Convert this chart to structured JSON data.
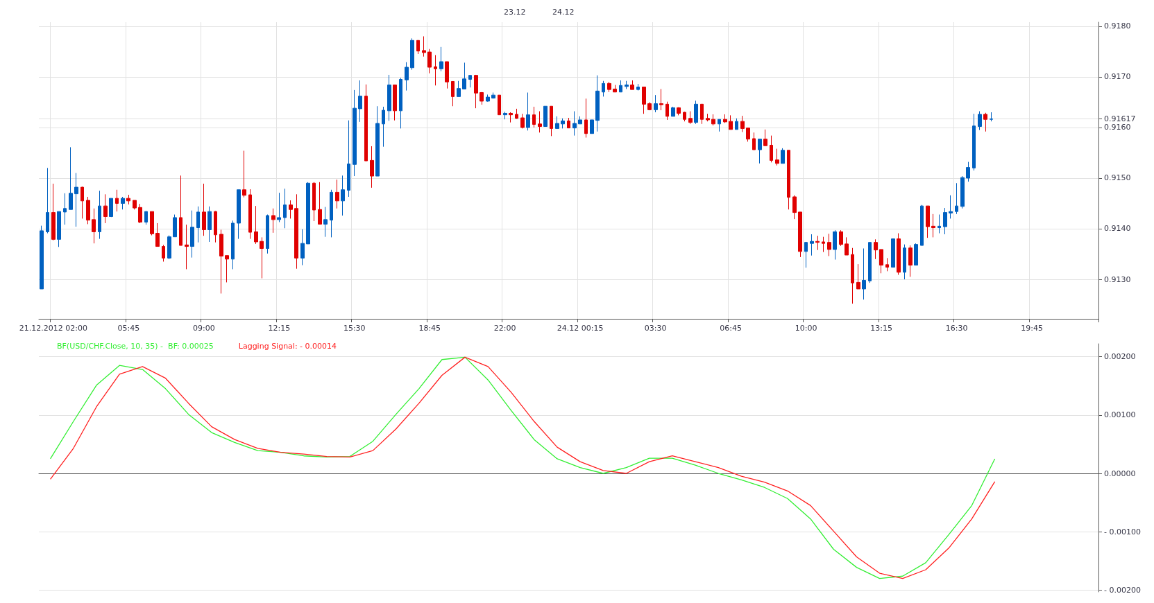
{
  "chart_data": [
    {
      "type": "candlestick",
      "grid": true,
      "legend": false,
      "categories": [
        null,
        null,
        "21.12.2012 02:00",
        null,
        null,
        null,
        null,
        null,
        null,
        null,
        null,
        null,
        null,
        null,
        null,
        "05:45",
        null,
        null,
        null,
        null,
        null,
        null,
        null,
        null,
        null,
        null,
        null,
        null,
        "09:00",
        null,
        null,
        null,
        null,
        null,
        null,
        null,
        null,
        null,
        null,
        null,
        null,
        "12:15",
        null,
        null,
        null,
        null,
        null,
        null,
        null,
        null,
        null,
        null,
        null,
        null,
        "15:30",
        null,
        null,
        null,
        null,
        null,
        null,
        null,
        null,
        null,
        null,
        null,
        null,
        "18:45",
        null,
        null,
        null,
        null,
        null,
        null,
        null,
        null,
        null,
        null,
        null,
        null,
        "22:00",
        null,
        null,
        null,
        null,
        null,
        null,
        null,
        null,
        null,
        null,
        null,
        null,
        "24.12 00:15",
        null,
        null,
        null,
        null,
        null,
        null,
        null,
        null,
        null,
        null,
        null,
        null,
        "03:30",
        null,
        null,
        null,
        null,
        null,
        null,
        null,
        null,
        null,
        null,
        null,
        null,
        "06:45",
        null,
        null,
        null,
        null,
        null,
        null,
        null,
        null,
        null,
        null,
        null,
        null,
        "10:00",
        null,
        null,
        null,
        null,
        null,
        null,
        null,
        null,
        null,
        null,
        null,
        null,
        "13:15",
        null,
        null,
        null,
        null,
        null,
        null,
        null,
        null,
        null,
        null,
        null,
        null,
        "16:30",
        null,
        null,
        null,
        null,
        null,
        null,
        null,
        null,
        null,
        null,
        null,
        null,
        "19:45",
        null,
        null,
        null,
        null,
        null,
        null,
        null,
        null,
        null,
        null,
        null
      ],
      "ylim": [
        0.91222,
        0.91808
      ],
      "yticks": [
        {
          "value": 0.913,
          "label": "0.9130"
        },
        {
          "value": 0.914,
          "label": "0.9140"
        },
        {
          "value": 0.915,
          "label": "0.9150"
        },
        {
          "value": 0.916,
          "label": "0.9160"
        },
        {
          "value": 0.91617,
          "label": "0.91617"
        },
        {
          "value": 0.917,
          "label": "0.9170"
        },
        {
          "value": 0.918,
          "label": "0.9180"
        }
      ],
      "annotations": [
        "23.12",
        "24.12"
      ],
      "ohlc": [
        [
          0.91281,
          0.91406,
          0.91281,
          0.91396
        ],
        [
          0.91394,
          0.9152,
          0.91391,
          0.91432
        ],
        [
          0.91432,
          0.91489,
          0.91377,
          0.91379
        ],
        [
          0.91379,
          0.91434,
          0.91364,
          0.91434
        ],
        [
          0.91433,
          0.9147,
          0.91408,
          0.9144
        ],
        [
          0.91438,
          0.91561,
          0.91438,
          0.9147
        ],
        [
          0.91469,
          0.9151,
          0.91404,
          0.91482
        ],
        [
          0.91482,
          0.91483,
          0.9142,
          0.91455
        ],
        [
          0.91456,
          0.91463,
          0.91409,
          0.91417
        ],
        [
          0.91418,
          0.9144,
          0.91371,
          0.91394
        ],
        [
          0.91394,
          0.91475,
          0.9138,
          0.91445
        ],
        [
          0.91445,
          0.91468,
          0.91411,
          0.91424
        ],
        [
          0.91424,
          0.9146,
          0.91423,
          0.9146
        ],
        [
          0.9146,
          0.91477,
          0.91434,
          0.9145
        ],
        [
          0.9145,
          0.91463,
          0.91438,
          0.9146
        ],
        [
          0.9146,
          0.91467,
          0.91448,
          0.91455
        ],
        [
          0.91456,
          0.91456,
          0.91438,
          0.91441
        ],
        [
          0.91442,
          0.91449,
          0.91411,
          0.91413
        ],
        [
          0.91413,
          0.91435,
          0.91408,
          0.91434
        ],
        [
          0.91434,
          0.91434,
          0.91387,
          0.9139
        ],
        [
          0.91391,
          0.91411,
          0.91365,
          0.91365
        ],
        [
          0.91365,
          0.91368,
          0.91335,
          0.91342
        ],
        [
          0.91342,
          0.91387,
          0.9134,
          0.91384
        ],
        [
          0.91384,
          0.91428,
          0.91384,
          0.91422
        ],
        [
          0.91422,
          0.91505,
          0.91367,
          0.91367
        ],
        [
          0.91368,
          0.91408,
          0.9132,
          0.91365
        ],
        [
          0.91365,
          0.91436,
          0.91343,
          0.91403
        ],
        [
          0.91402,
          0.91444,
          0.91373,
          0.91433
        ],
        [
          0.91433,
          0.91489,
          0.91386,
          0.91398
        ],
        [
          0.91398,
          0.91444,
          0.91374,
          0.91434
        ],
        [
          0.91434,
          0.91435,
          0.91373,
          0.91388
        ],
        [
          0.91389,
          0.91398,
          0.91272,
          0.91346
        ],
        [
          0.91347,
          0.91347,
          0.91294,
          0.9134
        ],
        [
          0.9134,
          0.91416,
          0.9132,
          0.91411
        ],
        [
          0.91411,
          0.91477,
          0.9138,
          0.91477
        ],
        [
          0.91477,
          0.91554,
          0.91462,
          0.91466
        ],
        [
          0.91467,
          0.91478,
          0.9138,
          0.91393
        ],
        [
          0.91394,
          0.91445,
          0.9137,
          0.91374
        ],
        [
          0.91375,
          0.91383,
          0.91302,
          0.91361
        ],
        [
          0.91361,
          0.91428,
          0.91351,
          0.91426
        ],
        [
          0.91426,
          0.9144,
          0.91392,
          0.91418
        ],
        [
          0.91418,
          0.91471,
          0.91413,
          0.91422
        ],
        [
          0.91422,
          0.91479,
          0.91401,
          0.91447
        ],
        [
          0.91447,
          0.91456,
          0.9142,
          0.91438
        ],
        [
          0.9144,
          0.91468,
          0.91321,
          0.91342
        ],
        [
          0.91342,
          0.91399,
          0.91328,
          0.91371
        ],
        [
          0.9137,
          0.91492,
          0.9137,
          0.9149
        ],
        [
          0.9149,
          0.91492,
          0.91415,
          0.91437
        ],
        [
          0.91438,
          0.91492,
          0.91409,
          0.91409
        ],
        [
          0.91409,
          0.91443,
          0.91384,
          0.91418
        ],
        [
          0.91417,
          0.91477,
          0.91383,
          0.91472
        ],
        [
          0.91472,
          0.91497,
          0.9144,
          0.91455
        ],
        [
          0.91455,
          0.91505,
          0.91426,
          0.91477
        ],
        [
          0.91476,
          0.91614,
          0.91463,
          0.91528
        ],
        [
          0.91527,
          0.91674,
          0.91504,
          0.91638
        ],
        [
          0.91637,
          0.91693,
          0.91611,
          0.91662
        ],
        [
          0.91662,
          0.91685,
          0.91534,
          0.91534
        ],
        [
          0.91535,
          0.91563,
          0.91481,
          0.91504
        ],
        [
          0.91504,
          0.91642,
          0.91504,
          0.91608
        ],
        [
          0.91607,
          0.91641,
          0.91562,
          0.91634
        ],
        [
          0.91633,
          0.91704,
          0.91613,
          0.91684
        ],
        [
          0.91684,
          0.91684,
          0.91614,
          0.91633
        ],
        [
          0.91633,
          0.91698,
          0.91598,
          0.91695
        ],
        [
          0.91694,
          0.91729,
          0.91673,
          0.91719
        ],
        [
          0.91718,
          0.91776,
          0.91714,
          0.91772
        ],
        [
          0.91772,
          0.91772,
          0.91745,
          0.91751
        ],
        [
          0.91752,
          0.9178,
          0.9174,
          0.91748
        ],
        [
          0.91749,
          0.91755,
          0.91707,
          0.91719
        ],
        [
          0.9172,
          0.91743,
          0.91683,
          0.91716
        ],
        [
          0.91716,
          0.91759,
          0.91711,
          0.9173
        ],
        [
          0.9173,
          0.9173,
          0.91677,
          0.9169
        ],
        [
          0.91691,
          0.91691,
          0.91642,
          0.91661
        ],
        [
          0.91661,
          0.91692,
          0.91661,
          0.91677
        ],
        [
          0.91676,
          0.91728,
          0.91676,
          0.91696
        ],
        [
          0.91695,
          0.91703,
          0.91679,
          0.91703
        ],
        [
          0.91703,
          0.91704,
          0.91638,
          0.91668
        ],
        [
          0.91669,
          0.9167,
          0.91645,
          0.91652
        ],
        [
          0.91652,
          0.91665,
          0.91651,
          0.9166
        ],
        [
          0.91658,
          0.91669,
          0.91657,
          0.91664
        ],
        [
          0.91664,
          0.91664,
          0.91625,
          0.91625
        ],
        [
          0.91625,
          0.91631,
          0.91616,
          0.91628
        ],
        [
          0.91628,
          0.9163,
          0.9161,
          0.91625
        ],
        [
          0.91626,
          0.91637,
          0.91617,
          0.91618
        ],
        [
          0.91619,
          0.91627,
          0.91598,
          0.916
        ],
        [
          0.916,
          0.91669,
          0.91594,
          0.91625
        ],
        [
          0.91625,
          0.91641,
          0.916,
          0.91606
        ],
        [
          0.91607,
          0.91632,
          0.9159,
          0.91602
        ],
        [
          0.91602,
          0.91642,
          0.91602,
          0.91642
        ],
        [
          0.91642,
          0.91642,
          0.91583,
          0.91598
        ],
        [
          0.91598,
          0.91622,
          0.91598,
          0.91608
        ],
        [
          0.91607,
          0.91618,
          0.91598,
          0.91613
        ],
        [
          0.91613,
          0.91619,
          0.91599,
          0.91599
        ],
        [
          0.91599,
          0.91632,
          0.91584,
          0.91608
        ],
        [
          0.91607,
          0.91622,
          0.91607,
          0.91615
        ],
        [
          0.91615,
          0.91657,
          0.9158,
          0.91588
        ],
        [
          0.91588,
          0.91615,
          0.91588,
          0.91615
        ],
        [
          0.91614,
          0.91703,
          0.91592,
          0.91672
        ],
        [
          0.9167,
          0.91692,
          0.91661,
          0.91687
        ],
        [
          0.91687,
          0.9169,
          0.9167,
          0.91675
        ],
        [
          0.91676,
          0.91684,
          0.9167,
          0.9167
        ],
        [
          0.9167,
          0.91693,
          0.9167,
          0.91683
        ],
        [
          0.91681,
          0.91692,
          0.91676,
          0.91684
        ],
        [
          0.91684,
          0.91693,
          0.91675,
          0.91675
        ],
        [
          0.91675,
          0.91686,
          0.91673,
          0.9168
        ],
        [
          0.9168,
          0.9168,
          0.91627,
          0.91646
        ],
        [
          0.91647,
          0.9165,
          0.91634,
          0.91635
        ],
        [
          0.91635,
          0.91664,
          0.9163,
          0.91647
        ],
        [
          0.91647,
          0.91676,
          0.91634,
          0.91645
        ],
        [
          0.91646,
          0.91651,
          0.91615,
          0.91622
        ],
        [
          0.91622,
          0.91641,
          0.91622,
          0.91639
        ],
        [
          0.91639,
          0.9164,
          0.91624,
          0.91628
        ],
        [
          0.9163,
          0.91631,
          0.91612,
          0.91616
        ],
        [
          0.91618,
          0.91632,
          0.91607,
          0.9161
        ],
        [
          0.9161,
          0.91653,
          0.91607,
          0.91646
        ],
        [
          0.91646,
          0.91646,
          0.91607,
          0.91616
        ],
        [
          0.91618,
          0.91627,
          0.91612,
          0.91615
        ],
        [
          0.91616,
          0.91626,
          0.91604,
          0.91607
        ],
        [
          0.91607,
          0.91616,
          0.91592,
          0.91616
        ],
        [
          0.91616,
          0.91626,
          0.91609,
          0.91611
        ],
        [
          0.91612,
          0.91624,
          0.91596,
          0.91596
        ],
        [
          0.91596,
          0.91618,
          0.91596,
          0.91612
        ],
        [
          0.91612,
          0.91623,
          0.91591,
          0.91598
        ],
        [
          0.91599,
          0.91599,
          0.91572,
          0.91577
        ],
        [
          0.91578,
          0.9159,
          0.91556,
          0.91556
        ],
        [
          0.91556,
          0.91577,
          0.91529,
          0.91577
        ],
        [
          0.91577,
          0.91596,
          0.91564,
          0.91564
        ],
        [
          0.91565,
          0.91584,
          0.91531,
          0.91535
        ],
        [
          0.91536,
          0.91558,
          0.91525,
          0.91529
        ],
        [
          0.91529,
          0.91559,
          0.91529,
          0.91555
        ],
        [
          0.91555,
          0.91555,
          0.91438,
          0.91462
        ],
        [
          0.91463,
          0.91466,
          0.91419,
          0.91432
        ],
        [
          0.91433,
          0.91433,
          0.91344,
          0.91355
        ],
        [
          0.91355,
          0.91374,
          0.91323,
          0.91373
        ],
        [
          0.91371,
          0.91389,
          0.91347,
          0.91375
        ],
        [
          0.91375,
          0.91386,
          0.91358,
          0.91373
        ],
        [
          0.91374,
          0.91384,
          0.91354,
          0.91371
        ],
        [
          0.91373,
          0.9139,
          0.91346,
          0.91359
        ],
        [
          0.91359,
          0.91397,
          0.91339,
          0.91394
        ],
        [
          0.91394,
          0.91397,
          0.91366,
          0.91369
        ],
        [
          0.9137,
          0.91383,
          0.91348,
          0.91348
        ],
        [
          0.91349,
          0.91362,
          0.91252,
          0.91293
        ],
        [
          0.91294,
          0.9133,
          0.91281,
          0.91281
        ],
        [
          0.91281,
          0.91361,
          0.9126,
          0.91298
        ],
        [
          0.91297,
          0.91373,
          0.91293,
          0.91373
        ],
        [
          0.91373,
          0.91379,
          0.9134,
          0.91358
        ],
        [
          0.91359,
          0.91359,
          0.91312,
          0.91328
        ],
        [
          0.91329,
          0.91342,
          0.91316,
          0.91324
        ],
        [
          0.91324,
          0.9138,
          0.91324,
          0.9138
        ],
        [
          0.9138,
          0.91391,
          0.91309,
          0.91314
        ],
        [
          0.91314,
          0.91369,
          0.913,
          0.91362
        ],
        [
          0.91362,
          0.91367,
          0.91305,
          0.91328
        ],
        [
          0.91328,
          0.91371,
          0.91328,
          0.91369
        ],
        [
          0.91367,
          0.91447,
          0.91367,
          0.91445
        ],
        [
          0.91445,
          0.91445,
          0.91382,
          0.91404
        ],
        [
          0.91405,
          0.91429,
          0.91383,
          0.91402
        ],
        [
          0.91402,
          0.91428,
          0.91391,
          0.91405
        ],
        [
          0.91404,
          0.91441,
          0.91389,
          0.91432
        ],
        [
          0.91431,
          0.91466,
          0.9142,
          0.91434
        ],
        [
          0.91434,
          0.9149,
          0.91429,
          0.91445
        ],
        [
          0.91444,
          0.91504,
          0.9144,
          0.91501
        ],
        [
          0.915,
          0.91532,
          0.91493,
          0.91521
        ],
        [
          0.9152,
          0.91627,
          0.91515,
          0.91603
        ],
        [
          0.91602,
          0.91632,
          0.91595,
          0.91626
        ],
        [
          0.91626,
          0.91629,
          0.91592,
          0.91616
        ],
        [
          0.91616,
          0.9163,
          0.91612,
          0.91617
        ],
        null,
        null,
        null,
        null,
        null,
        null,
        null,
        null,
        null,
        null,
        null,
        null,
        null,
        null,
        null,
        null,
        null,
        null
      ],
      "colors": [
        "#0060c0",
        "#0060c0",
        "#e00000",
        "#0060c0",
        "#0060c0",
        "#0060c0",
        "#0060c0",
        "#e00000",
        "#e00000",
        "#e00000",
        "#0060c0",
        "#e00000",
        "#0060c0",
        "#e00000",
        "#0060c0",
        "#e00000",
        "#e00000",
        "#e00000",
        "#0060c0",
        "#e00000",
        "#e00000",
        "#e00000",
        "#0060c0",
        "#0060c0",
        "#e00000",
        "#e00000",
        "#0060c0",
        "#0060c0",
        "#e00000",
        "#0060c0",
        "#e00000",
        "#e00000",
        "#e00000",
        "#0060c0",
        "#0060c0",
        "#e00000",
        "#e00000",
        "#e00000",
        "#e00000",
        "#0060c0",
        "#e00000",
        "#0060c0",
        "#0060c0",
        "#e00000",
        "#e00000",
        "#0060c0",
        "#0060c0",
        "#e00000",
        "#e00000",
        "#0060c0",
        "#0060c0",
        "#e00000",
        "#0060c0",
        "#0060c0",
        "#0060c0",
        "#0060c0",
        "#e00000",
        "#e00000",
        "#0060c0",
        "#0060c0",
        "#0060c0",
        "#e00000",
        "#0060c0",
        "#0060c0",
        "#0060c0",
        "#e00000",
        "#e00000",
        "#e00000",
        "#e00000",
        "#0060c0",
        "#e00000",
        "#e00000",
        "#0060c0",
        "#0060c0",
        "#0060c0",
        "#e00000",
        "#e00000",
        "#0060c0",
        "#0060c0",
        "#e00000",
        "#0060c0",
        "#e00000",
        "#e00000",
        "#e00000",
        "#0060c0",
        "#e00000",
        "#e00000",
        "#0060c0",
        "#e00000",
        "#0060c0",
        "#0060c0",
        "#e00000",
        "#0060c0",
        "#0060c0",
        "#e00000",
        "#0060c0",
        "#0060c0",
        "#0060c0",
        "#e00000",
        "#e00000",
        "#0060c0",
        "#0060c0",
        "#e00000",
        "#0060c0",
        "#e00000",
        "#e00000",
        "#0060c0",
        "#e00000",
        "#e00000",
        "#0060c0",
        "#e00000",
        "#e00000",
        "#e00000",
        "#0060c0",
        "#e00000",
        "#e00000",
        "#e00000",
        "#0060c0",
        "#e00000",
        "#e00000",
        "#0060c0",
        "#e00000",
        "#e00000",
        "#e00000",
        "#0060c0",
        "#e00000",
        "#e00000",
        "#e00000",
        "#0060c0",
        "#e00000",
        "#e00000",
        "#e00000",
        "#0060c0",
        "#0060c0",
        "#e00000",
        "#e00000",
        "#e00000",
        "#0060c0",
        "#e00000",
        "#e00000",
        "#e00000",
        "#e00000",
        "#0060c0",
        "#0060c0",
        "#e00000",
        "#e00000",
        "#e00000",
        "#0060c0",
        "#e00000",
        "#0060c0",
        "#e00000",
        "#0060c0",
        "#0060c0",
        "#e00000",
        "#e00000",
        "#0060c0",
        "#0060c0",
        "#0060c0",
        "#0060c0",
        "#0060c0",
        "#0060c0",
        "#0060c0",
        "#0060c0",
        "#e00000",
        "#0060c0",
        null,
        null,
        null,
        null,
        null,
        null,
        null,
        null,
        null,
        null,
        null,
        null,
        null,
        null,
        null,
        null,
        null,
        null
      ]
    },
    {
      "type": "line",
      "grid": true,
      "legend": "top left",
      "tick_labels": "y",
      "marker": "none",
      "line_style": "solid",
      "categories": [
        null,
        null,
        null,
        null,
        null,
        null,
        null,
        null,
        null,
        null,
        null,
        null,
        null,
        null,
        null,
        null,
        null,
        null,
        null,
        null,
        null,
        null,
        null,
        null,
        null,
        null,
        null,
        null,
        null,
        null,
        null,
        null,
        null,
        null,
        null,
        null,
        null,
        null,
        null,
        null,
        null,
        null,
        null,
        null,
        null,
        null
      ],
      "ylim": [
        -0.00203,
        0.00222
      ],
      "yticks": [
        {
          "value": -0.002,
          "label": "- 0.00200"
        },
        {
          "value": -0.001,
          "label": "- 0.00100"
        },
        {
          "value": 0,
          "label": "0.00000"
        },
        {
          "value": 0.001,
          "label": "0.00100"
        },
        {
          "value": 0.002,
          "label": "0.00200"
        }
      ],
      "series": [
        {
          "name": "BF(USD/CHF.Close, 10, 35) -  BF: 0.00025",
          "color": "#33ee33",
          "values": [
            0.00025,
            0.00089,
            0.00151,
            0.00185,
            0.00178,
            0.00145,
            0.00101,
            0.0007,
            0.00053,
            0.00039,
            0.00036,
            0.0003,
            0.00028,
            0.00029,
            0.00055,
            0.00101,
            0.00145,
            0.00195,
            0.00199,
            0.0016,
            0.00108,
            0.00058,
            0.00025,
            0.0001,
            0,
            0.0001,
            0.00026,
            0.00026,
            0.00014,
            0,
            -0.00011,
            -0.00024,
            -0.00043,
            -0.00078,
            -0.0013,
            -0.00161,
            -0.0018,
            -0.00176,
            -0.00153,
            -0.00105,
            -0.00055,
            0.00025,
            null,
            null,
            null,
            null
          ]
        },
        {
          "name": "Lagging Signal: - 0.00014",
          "color": "#ff2020",
          "values": [
            -0.0001,
            0.00043,
            0.00114,
            0.0017,
            0.00183,
            0.00163,
            0.0012,
            0.0008,
            0.00058,
            0.00043,
            0.00036,
            0.00033,
            0.00029,
            0.00028,
            0.00039,
            0.00076,
            0.0012,
            0.00168,
            0.00199,
            0.00183,
            0.00139,
            0.00089,
            0.00045,
            0.0002,
            5e-05,
            0,
            0.0002,
            0.0003,
            0.0002,
            0.0001,
            -5e-05,
            -0.00015,
            -0.0003,
            -0.00055,
            -0.00099,
            -0.00143,
            -0.00171,
            -0.0018,
            -0.00165,
            -0.00128,
            -0.00078,
            -0.00014,
            null,
            null,
            null,
            null
          ]
        }
      ]
    }
  ]
}
